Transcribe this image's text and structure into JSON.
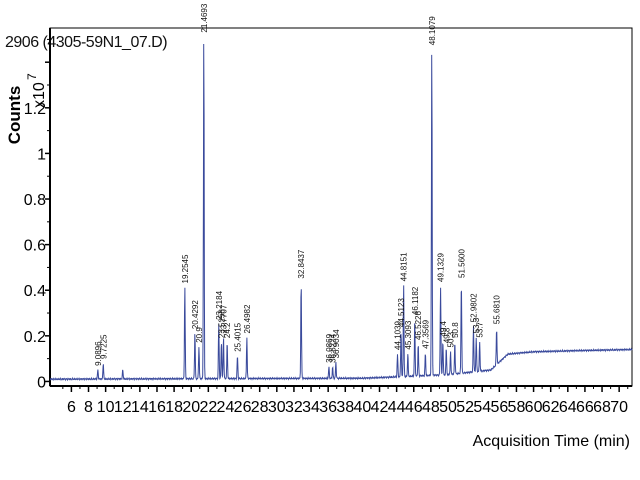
{
  "sample_title": "2906 (4305-59N1_07.D)",
  "chart_data": {
    "type": "line",
    "title": "2906 (4305-59N1_07.D)",
    "xlabel": "Acquisition Time (min)",
    "ylabel": "Counts",
    "y_multiplier": "x10",
    "y_multiplier_exp": "7",
    "xlim": [
      3.5,
      71.5
    ],
    "ylim": [
      -0.02,
      1.55
    ],
    "x_ticks": [
      6,
      8,
      10,
      12,
      14,
      16,
      18,
      20,
      22,
      24,
      26,
      28,
      30,
      32,
      34,
      36,
      38,
      40,
      42,
      44,
      46,
      48,
      50,
      52,
      54,
      56,
      58,
      60,
      62,
      64,
      66,
      68,
      70
    ],
    "y_ticks": [
      0,
      0.2,
      0.4,
      0.6,
      0.8,
      1,
      1.2,
      1.4
    ],
    "y_tick_labels": [
      "0",
      "0.2",
      "0.4",
      "0.6",
      "0.8",
      "1",
      "1.2",
      ""
    ],
    "line_color": "#3a4a9c",
    "baseline_points": [
      {
        "x": 3.5,
        "y": 0.01
      },
      {
        "x": 20,
        "y": 0.012
      },
      {
        "x": 40,
        "y": 0.014
      },
      {
        "x": 44,
        "y": 0.02
      },
      {
        "x": 50,
        "y": 0.03
      },
      {
        "x": 55,
        "y": 0.05
      },
      {
        "x": 57,
        "y": 0.12
      },
      {
        "x": 60,
        "y": 0.13
      },
      {
        "x": 65,
        "y": 0.135
      },
      {
        "x": 71.5,
        "y": 0.14
      }
    ],
    "peaks": [
      {
        "x": 9.0896,
        "y": 0.04,
        "label": "9.0896"
      },
      {
        "x": 9.7225,
        "y": 0.07,
        "label": "9.7225"
      },
      {
        "x": 12.0,
        "y": 0.04,
        "label": ""
      },
      {
        "x": 19.2545,
        "y": 0.4,
        "label": "19.2545"
      },
      {
        "x": 20.4292,
        "y": 0.2,
        "label": "20.4292"
      },
      {
        "x": 20.9,
        "y": 0.14,
        "label": "20.9"
      },
      {
        "x": 21.4693,
        "y": 1.5,
        "label": "21.4693"
      },
      {
        "x": 23.2184,
        "y": 0.24,
        "label": "23.2184"
      },
      {
        "x": 23.5258,
        "y": 0.16,
        "label": "23.5258"
      },
      {
        "x": 23.7707,
        "y": 0.18,
        "label": "23.7707"
      },
      {
        "x": 24.2,
        "y": 0.16,
        "label": "24.2"
      },
      {
        "x": 25.4015,
        "y": 0.1,
        "label": "25.4015"
      },
      {
        "x": 26.4982,
        "y": 0.18,
        "label": "26.4982"
      },
      {
        "x": 32.8437,
        "y": 0.42,
        "label": "32.8437"
      },
      {
        "x": 36.0869,
        "y": 0.05,
        "label": "36.0869"
      },
      {
        "x": 36.5224,
        "y": 0.05,
        "label": "36.5224"
      },
      {
        "x": 36.9034,
        "y": 0.07,
        "label": "36.9034"
      },
      {
        "x": 44.1039,
        "y": 0.1,
        "label": "44.1039"
      },
      {
        "x": 44.5123,
        "y": 0.2,
        "label": "44.5123"
      },
      {
        "x": 44.8151,
        "y": 0.4,
        "label": "44.8151"
      },
      {
        "x": 45.3093,
        "y": 0.1,
        "label": "45.3093"
      },
      {
        "x": 46.1182,
        "y": 0.25,
        "label": "46.1182"
      },
      {
        "x": 46.5226,
        "y": 0.14,
        "label": "46.5226"
      },
      {
        "x": 47.3569,
        "y": 0.1,
        "label": "47.3569"
      },
      {
        "x": 48.1079,
        "y": 1.43,
        "label": "48.1079"
      },
      {
        "x": 49.1329,
        "y": 0.39,
        "label": "49.1329"
      },
      {
        "x": 49.4,
        "y": 0.15,
        "label": "49.4"
      },
      {
        "x": 49.8,
        "y": 0.12,
        "label": "49.8"
      },
      {
        "x": 50.3,
        "y": 0.1,
        "label": "50.3"
      },
      {
        "x": 50.8,
        "y": 0.14,
        "label": "50.8"
      },
      {
        "x": 51.56,
        "y": 0.4,
        "label": "51.5600"
      },
      {
        "x": 52.9802,
        "y": 0.2,
        "label": "52.9802"
      },
      {
        "x": 53.3,
        "y": 0.15,
        "label": "53.3"
      },
      {
        "x": 53.7,
        "y": 0.13,
        "label": "53.7"
      },
      {
        "x": 55.681,
        "y": 0.16,
        "label": "55.6810"
      }
    ]
  }
}
